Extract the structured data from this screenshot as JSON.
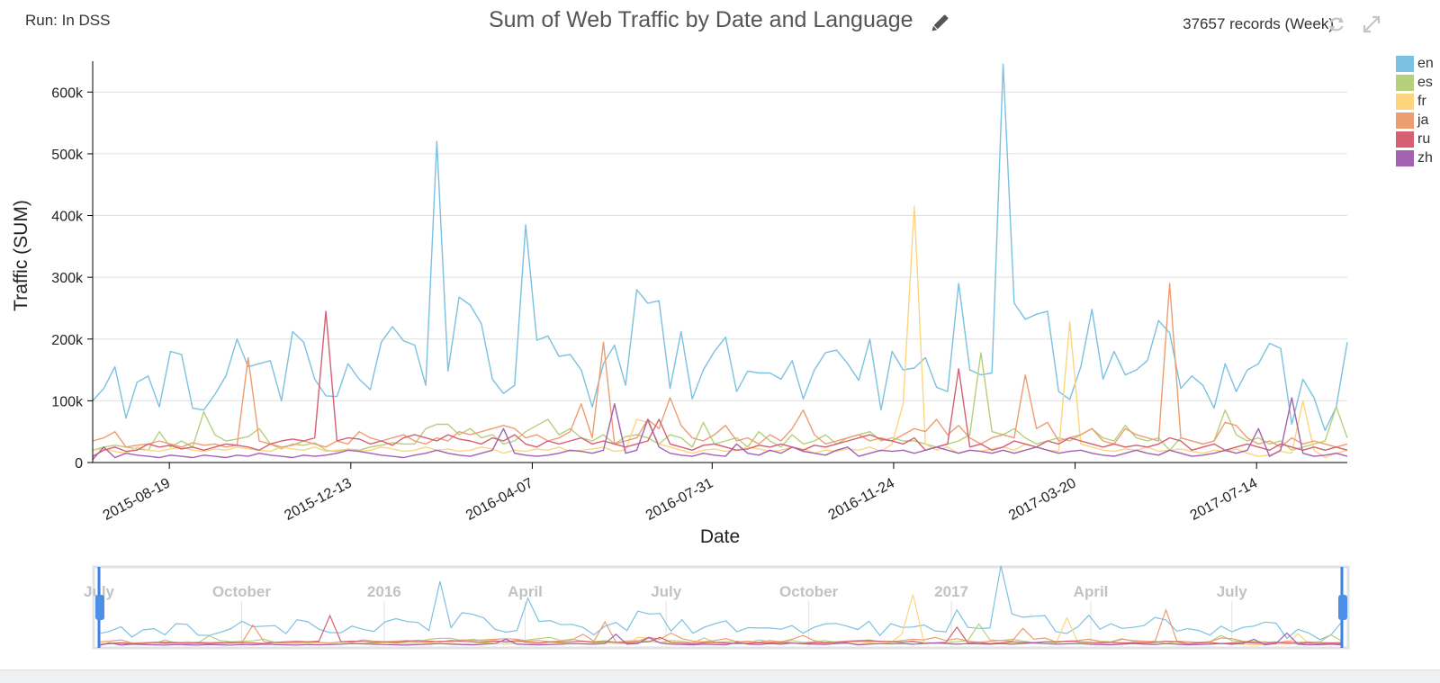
{
  "header": {
    "run_label": "Run: In DSS",
    "title": "Sum of Web Traffic by Date and Language",
    "records": "37657 records (Week)"
  },
  "icons": [
    "pencil-icon",
    "refresh-icon",
    "expand-icon"
  ],
  "colors": {
    "en": "#7bc1e0",
    "es": "#b5d07c",
    "fr": "#fdd57e",
    "ja": "#ed9d72",
    "ru": "#d65f72",
    "zh": "#a162b0"
  },
  "chart_data": {
    "type": "line",
    "title": "Sum of Web Traffic by Date and Language",
    "xlabel": "Date",
    "ylabel": "Traffic (SUM)",
    "x_range": [
      "2015-07-01",
      "2017-09-10"
    ],
    "ylim": [
      0,
      650000
    ],
    "y_ticks": [
      "0",
      "100k",
      "200k",
      "300k",
      "400k",
      "500k",
      "600k"
    ],
    "x_ticks": [
      "2015-08-19",
      "2015-12-13",
      "2016-04-07",
      "2016-07-31",
      "2016-11-24",
      "2017-03-20",
      "2017-07-14"
    ],
    "grid": "horizontal",
    "legend_position": "right",
    "series": [
      {
        "name": "en",
        "color": "#7bc1e0",
        "values": [
          100000,
          120000,
          155000,
          72000,
          130000,
          140000,
          90000,
          180000,
          175000,
          88000,
          85000,
          110000,
          140000,
          200000,
          155000,
          160000,
          165000,
          100000,
          212000,
          195000,
          135000,
          108000,
          107000,
          160000,
          135000,
          118000,
          195000,
          220000,
          197000,
          190000,
          125000,
          520000,
          148000,
          268000,
          255000,
          225000,
          135000,
          112000,
          125000,
          385000,
          198000,
          205000,
          172000,
          175000,
          150000,
          90000,
          160000,
          190000,
          125000,
          280000,
          258000,
          262000,
          120000,
          212000,
          103000,
          150000,
          180000,
          203000,
          115000,
          148000,
          145000,
          145000,
          135000,
          165000,
          103000,
          150000,
          178000,
          182000,
          160000,
          133000,
          200000,
          85000,
          180000,
          150000,
          153000,
          170000,
          122000,
          115000,
          290000,
          150000,
          142000,
          145000,
          645000,
          258000,
          232000,
          240000,
          245000,
          115000,
          102000,
          155000,
          248000,
          135000,
          180000,
          142000,
          150000,
          165000,
          230000,
          210000,
          120000,
          140000,
          125000,
          88000,
          160000,
          115000,
          150000,
          160000,
          193000,
          185000,
          62000,
          135000,
          105000,
          52000,
          90000,
          195000
        ]
      },
      {
        "name": "es",
        "color": "#b5d07c",
        "values": [
          20000,
          25000,
          28000,
          25000,
          22000,
          20000,
          50000,
          25000,
          35000,
          25000,
          82000,
          45000,
          35000,
          38000,
          42000,
          55000,
          30000,
          22000,
          30000,
          28000,
          32000,
          20000,
          18000,
          22000,
          20000,
          25000,
          28000,
          32000,
          30000,
          30000,
          55000,
          62000,
          62000,
          45000,
          55000,
          40000,
          45000,
          30000,
          35000,
          50000,
          60000,
          70000,
          45000,
          55000,
          40000,
          35000,
          45000,
          30000,
          42000,
          45000,
          40000,
          30000,
          45000,
          40000,
          25000,
          65000,
          30000,
          35000,
          40000,
          25000,
          50000,
          35000,
          25000,
          45000,
          30000,
          35000,
          45000,
          30000,
          40000,
          45000,
          50000,
          35000,
          40000,
          35000,
          35000,
          30000,
          25000,
          30000,
          35000,
          45000,
          178000,
          50000,
          45000,
          55000,
          40000,
          30000,
          35000,
          40000,
          35000,
          45000,
          55000,
          40000,
          35000,
          60000,
          40000,
          35000,
          40000,
          20000,
          40000,
          35000,
          30000,
          35000,
          85000,
          45000,
          35000,
          40000,
          30000,
          35000,
          20000,
          25000,
          30000,
          35000,
          90000,
          40000
        ]
      },
      {
        "name": "fr",
        "color": "#fdd57e",
        "values": [
          20000,
          22000,
          18000,
          15000,
          25000,
          20000,
          18000,
          22000,
          25000,
          20000,
          18000,
          22000,
          20000,
          25000,
          22000,
          20000,
          18000,
          25000,
          22000,
          20000,
          25000,
          18000,
          20000,
          22000,
          18000,
          20000,
          25000,
          22000,
          18000,
          20000,
          25000,
          20000,
          22000,
          18000,
          20000,
          25000,
          22000,
          15000,
          20000,
          18000,
          22000,
          20000,
          25000,
          18000,
          20000,
          22000,
          25000,
          18000,
          20000,
          70000,
          65000,
          30000,
          25000,
          20000,
          15000,
          20000,
          22000,
          18000,
          20000,
          25000,
          22000,
          18000,
          20000,
          25000,
          22000,
          15000,
          20000,
          18000,
          22000,
          20000,
          25000,
          18000,
          30000,
          95000,
          415000,
          30000,
          20000,
          25000,
          15000,
          20000,
          18000,
          22000,
          25000,
          20000,
          30000,
          25000,
          20000,
          18000,
          228000,
          30000,
          25000,
          20000,
          18000,
          22000,
          20000,
          25000,
          18000,
          20000,
          22000,
          18000,
          15000,
          20000,
          18000,
          22000,
          15000,
          10000,
          12000,
          18000,
          15000,
          100000,
          20000,
          8000,
          15000,
          20000
        ]
      },
      {
        "name": "ja",
        "color": "#ed9d72",
        "values": [
          35000,
          40000,
          50000,
          25000,
          28000,
          30000,
          35000,
          30000,
          25000,
          32000,
          28000,
          30000,
          25000,
          28000,
          170000,
          35000,
          30000,
          25000,
          28000,
          35000,
          30000,
          25000,
          35000,
          30000,
          50000,
          40000,
          35000,
          40000,
          45000,
          35000,
          30000,
          40000,
          35000,
          50000,
          45000,
          50000,
          55000,
          60000,
          55000,
          40000,
          45000,
          35000,
          40000,
          50000,
          95000,
          40000,
          195000,
          30000,
          35000,
          40000,
          70000,
          55000,
          105000,
          60000,
          40000,
          35000,
          45000,
          60000,
          35000,
          40000,
          30000,
          45000,
          35000,
          55000,
          85000,
          45000,
          30000,
          35000,
          40000,
          45000,
          35000,
          40000,
          35000,
          45000,
          55000,
          50000,
          70000,
          45000,
          60000,
          40000,
          30000,
          40000,
          45000,
          40000,
          142000,
          55000,
          65000,
          35000,
          40000,
          45000,
          55000,
          35000,
          30000,
          55000,
          45000,
          40000,
          35000,
          290000,
          40000,
          35000,
          30000,
          35000,
          65000,
          60000,
          40000,
          30000,
          35000,
          25000,
          40000,
          30000,
          35000,
          30000,
          25000,
          30000
        ]
      },
      {
        "name": "ru",
        "color": "#d65f72",
        "values": [
          10000,
          20000,
          25000,
          18000,
          20000,
          30000,
          25000,
          28000,
          22000,
          25000,
          20000,
          25000,
          30000,
          28000,
          25000,
          20000,
          30000,
          35000,
          38000,
          35000,
          40000,
          245000,
          35000,
          40000,
          38000,
          30000,
          35000,
          28000,
          40000,
          45000,
          40000,
          35000,
          45000,
          38000,
          35000,
          30000,
          40000,
          35000,
          45000,
          30000,
          25000,
          35000,
          30000,
          35000,
          40000,
          30000,
          35000,
          30000,
          25000,
          30000,
          35000,
          70000,
          30000,
          25000,
          20000,
          28000,
          30000,
          25000,
          20000,
          22000,
          28000,
          25000,
          30000,
          25000,
          20000,
          28000,
          25000,
          30000,
          35000,
          40000,
          45000,
          38000,
          35000,
          30000,
          40000,
          20000,
          25000,
          30000,
          152000,
          25000,
          30000,
          20000,
          25000,
          35000,
          30000,
          25000,
          35000,
          30000,
          40000,
          35000,
          30000,
          25000,
          30000,
          25000,
          28000,
          25000,
          30000,
          40000,
          35000,
          20000,
          25000,
          30000,
          20000,
          25000,
          30000,
          25000,
          20000,
          30000,
          25000,
          20000,
          25000,
          20000,
          25000,
          20000
        ]
      },
      {
        "name": "zh",
        "color": "#a162b0",
        "values": [
          5000,
          25000,
          8000,
          15000,
          12000,
          10000,
          8000,
          12000,
          10000,
          8000,
          12000,
          10000,
          8000,
          12000,
          10000,
          15000,
          12000,
          10000,
          8000,
          12000,
          10000,
          12000,
          15000,
          20000,
          18000,
          15000,
          12000,
          10000,
          8000,
          12000,
          15000,
          20000,
          15000,
          12000,
          10000,
          15000,
          20000,
          55000,
          15000,
          12000,
          10000,
          12000,
          15000,
          20000,
          18000,
          15000,
          20000,
          95000,
          15000,
          20000,
          70000,
          25000,
          15000,
          12000,
          10000,
          15000,
          12000,
          10000,
          30000,
          15000,
          12000,
          20000,
          15000,
          25000,
          18000,
          15000,
          12000,
          20000,
          25000,
          10000,
          15000,
          20000,
          18000,
          20000,
          15000,
          20000,
          25000,
          20000,
          15000,
          20000,
          18000,
          15000,
          20000,
          15000,
          20000,
          25000,
          20000,
          15000,
          18000,
          20000,
          15000,
          12000,
          10000,
          15000,
          20000,
          15000,
          12000,
          20000,
          15000,
          10000,
          12000,
          15000,
          20000,
          15000,
          20000,
          55000,
          10000,
          20000,
          105000,
          15000,
          10000,
          12000,
          15000,
          10000
        ]
      }
    ],
    "navigator": {
      "labels": [
        "July",
        "October",
        "2016",
        "April",
        "July",
        "October",
        "2017",
        "April",
        "July"
      ]
    }
  }
}
